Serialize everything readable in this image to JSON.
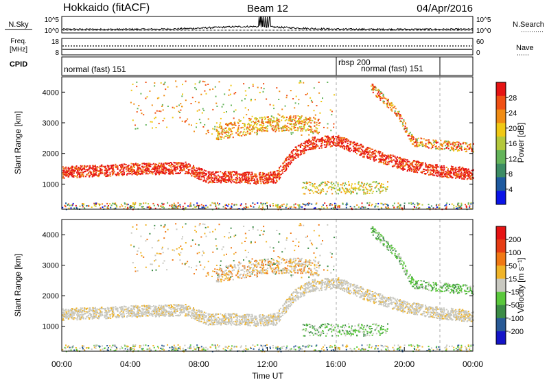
{
  "header": {
    "station": "Hokkaido (fitACF)",
    "beam": "Beam 12",
    "date": "04/Apr/2016"
  },
  "noise_panel": {
    "left_label": "N.Sky",
    "left_ticks": [
      "10^5",
      "10^0"
    ],
    "right_ticks": [
      "10^5",
      "10^0"
    ],
    "right_label": "N.Search"
  },
  "freq_panel": {
    "left_label_1": "Freq.",
    "left_label_2": "[MHz]",
    "left_ticks": [
      "18",
      "8"
    ],
    "right_ticks": [
      "60",
      "0"
    ],
    "right_label": "Nave"
  },
  "cpid_panel": {
    "label": "CPID",
    "modes": [
      {
        "name": "normal (fast) 151",
        "start_hour": 0,
        "end_hour": 16
      },
      {
        "name": "rbsp 200",
        "start_hour": 16,
        "end_hour": 22
      },
      {
        "name": "normal (fast) 151",
        "start_hour": 16,
        "end_hour": 22
      }
    ]
  },
  "colors": {
    "power_scale": [
      "#0a14e8",
      "#1e5aa0",
      "#3c8c64",
      "#64b45a",
      "#b4c83c",
      "#f0c814",
      "#f08c14",
      "#f05014",
      "#e61414"
    ],
    "velocity_scale": [
      "#1414c8",
      "#285a96",
      "#3c8c46",
      "#5ac83c",
      "#c8c8c0",
      "#f0b428",
      "#f07814",
      "#e63c14",
      "#e61414"
    ]
  },
  "chart_data": [
    {
      "type": "heatmap",
      "name_in_plot": "Power",
      "title": "",
      "ylabel": "Slant Range [km]",
      "colorbar_label": "Power [dB]",
      "colorbar_ticks": [
        "28",
        "24",
        "20",
        "16",
        "12",
        "8",
        "4"
      ],
      "y_ticks": [
        "4000",
        "3000",
        "2000",
        "1000"
      ],
      "ylim": [
        180,
        4500
      ],
      "xlim": [
        0,
        24
      ],
      "vertical_markers_hour": [
        16,
        22
      ],
      "echo_bands": [
        {
          "description": "main band",
          "hours": [
            0,
            4,
            7.2,
            8.5,
            10,
            11.5,
            12.5,
            13.5,
            14.5,
            16,
            18,
            20,
            22,
            24
          ],
          "range_km": [
            1400,
            1500,
            1550,
            1250,
            1250,
            1200,
            1250,
            2000,
            2350,
            2450,
            2000,
            1650,
            1450,
            1350
          ]
        },
        {
          "description": "upper band",
          "hours": [
            9,
            11,
            12,
            14,
            15
          ],
          "range_km": [
            2700,
            2900,
            3000,
            3000,
            2900
          ]
        },
        {
          "description": "far band",
          "hours": [
            18,
            19.5,
            20.5,
            22,
            24
          ],
          "range_km": [
            4200,
            3400,
            2400,
            2300,
            2200
          ]
        }
      ]
    },
    {
      "type": "heatmap",
      "name_in_plot": "Velocity",
      "title": "",
      "ylabel": "Slant Range [km]",
      "xlabel": "Time UT",
      "colorbar_label": "Velocity [m s⁻¹]",
      "colorbar_ticks": [
        "200",
        "100",
        "50",
        "15",
        "-15",
        "-50",
        "-100",
        "-200"
      ],
      "y_ticks": [
        "4000",
        "3000",
        "2000",
        "1000"
      ],
      "x_ticks": [
        "00:00",
        "04:00",
        "08:00",
        "12:00",
        "16:00",
        "20:00",
        "00:00"
      ],
      "ylim": [
        180,
        4500
      ],
      "xlim": [
        0,
        24
      ],
      "vertical_markers_hour": [
        16,
        22
      ]
    }
  ]
}
